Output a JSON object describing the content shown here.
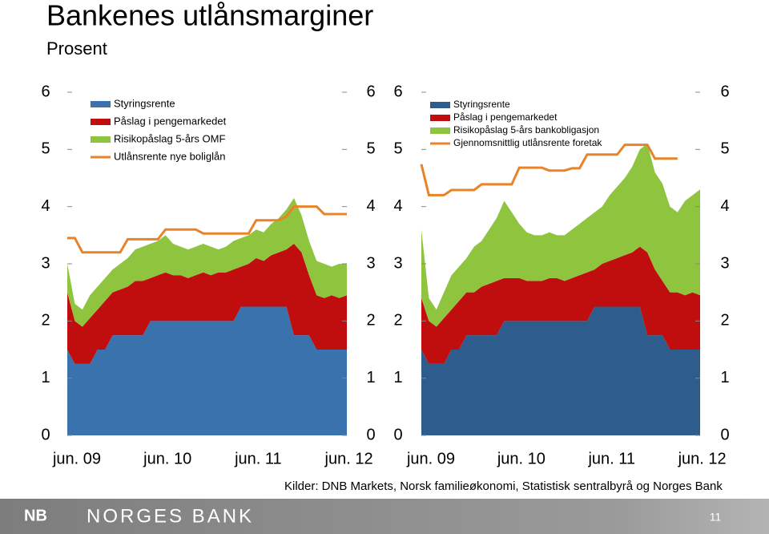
{
  "title": "Bankenes utlånsmarginer",
  "subtitle": "Prosent",
  "source": "Kilder: DNB Markets, Norsk familieøkonomi, Statistisk sentralbyrå og Norges Bank",
  "footer": {
    "logo_mark": "NB",
    "logo": "NORGES BANK",
    "page": "11"
  },
  "chart_data": [
    {
      "type": "area",
      "categories": [
        "jun. 09",
        null,
        null,
        null,
        null,
        null,
        null,
        null,
        null,
        null,
        null,
        null,
        "jun. 10",
        null,
        null,
        null,
        null,
        null,
        null,
        null,
        null,
        null,
        null,
        null,
        "jun. 11",
        null,
        null,
        null,
        null,
        null,
        null,
        null,
        null,
        null,
        null,
        null,
        "jun. 12",
        null
      ],
      "ylim": [
        0,
        6
      ],
      "yticks": [
        0,
        1,
        2,
        3,
        4,
        5,
        6
      ],
      "series": [
        {
          "name": "Styringsrente",
          "color": "#3a72ad",
          "values": [
            1.5,
            1.25,
            1.25,
            1.25,
            1.5,
            1.5,
            1.75,
            1.75,
            1.75,
            1.75,
            1.75,
            2.0,
            2.0,
            2.0,
            2.0,
            2.0,
            2.0,
            2.0,
            2.0,
            2.0,
            2.0,
            2.0,
            2.0,
            2.25,
            2.25,
            2.25,
            2.25,
            2.25,
            2.25,
            2.25,
            1.75,
            1.75,
            1.75,
            1.5,
            1.5,
            1.5,
            1.5,
            1.5
          ]
        },
        {
          "name": "Påslag i pengemarkedet",
          "color": "#c00d0d",
          "values": [
            1.0,
            0.75,
            0.65,
            0.8,
            0.7,
            0.85,
            0.75,
            0.8,
            0.85,
            0.95,
            0.95,
            0.75,
            0.8,
            0.85,
            0.8,
            0.8,
            0.75,
            0.8,
            0.85,
            0.8,
            0.85,
            0.85,
            0.9,
            0.7,
            0.75,
            0.85,
            0.8,
            0.9,
            0.95,
            1.0,
            1.6,
            1.45,
            1.05,
            0.95,
            0.9,
            0.95,
            0.9,
            0.95
          ]
        },
        {
          "name": "Risikopåslag 5-års OMF",
          "color": "#8fc43f",
          "values": [
            0.5,
            0.3,
            0.3,
            0.4,
            0.4,
            0.4,
            0.4,
            0.45,
            0.5,
            0.55,
            0.6,
            0.6,
            0.6,
            0.65,
            0.55,
            0.5,
            0.5,
            0.5,
            0.5,
            0.5,
            0.4,
            0.45,
            0.5,
            0.5,
            0.5,
            0.5,
            0.5,
            0.55,
            0.6,
            0.7,
            0.8,
            0.65,
            0.6,
            0.6,
            0.6,
            0.5,
            0.6,
            0.55
          ]
        },
        {
          "name": "Utlånsrente nye boliglån",
          "type": "line",
          "color": "#e8832a",
          "values": [
            3.45,
            3.45,
            3.2,
            3.2,
            3.2,
            3.2,
            3.2,
            3.2,
            3.43,
            3.43,
            3.43,
            3.43,
            3.43,
            3.6,
            3.6,
            3.6,
            3.6,
            3.6,
            3.53,
            3.53,
            3.53,
            3.53,
            3.53,
            3.53,
            3.53,
            3.76,
            3.76,
            3.76,
            3.76,
            3.83,
            4.0,
            4.0,
            4.0,
            4.0,
            3.87,
            3.87,
            3.87,
            3.87
          ]
        }
      ]
    },
    {
      "type": "area",
      "categories": [
        "jun. 09",
        null,
        null,
        null,
        null,
        null,
        null,
        null,
        null,
        null,
        null,
        null,
        "jun. 10",
        null,
        null,
        null,
        null,
        null,
        null,
        null,
        null,
        null,
        null,
        null,
        "jun. 11",
        null,
        null,
        null,
        null,
        null,
        null,
        null,
        null,
        null,
        null,
        null,
        "jun. 12",
        null
      ],
      "ylim": [
        0,
        6
      ],
      "yticks": [
        0,
        1,
        2,
        3,
        4,
        5,
        6
      ],
      "series": [
        {
          "name": "Styringsrente",
          "color": "#2e5c8c",
          "values": [
            1.5,
            1.25,
            1.25,
            1.25,
            1.5,
            1.5,
            1.75,
            1.75,
            1.75,
            1.75,
            1.75,
            2.0,
            2.0,
            2.0,
            2.0,
            2.0,
            2.0,
            2.0,
            2.0,
            2.0,
            2.0,
            2.0,
            2.0,
            2.25,
            2.25,
            2.25,
            2.25,
            2.25,
            2.25,
            2.25,
            1.75,
            1.75,
            1.75,
            1.5,
            1.5,
            1.5,
            1.5,
            1.5
          ]
        },
        {
          "name": "Påslag i pengemarkedet",
          "color": "#c00d0d",
          "values": [
            0.9,
            0.75,
            0.65,
            0.8,
            0.7,
            0.85,
            0.75,
            0.75,
            0.85,
            0.9,
            0.95,
            0.75,
            0.75,
            0.75,
            0.7,
            0.7,
            0.7,
            0.75,
            0.75,
            0.7,
            0.75,
            0.8,
            0.85,
            0.65,
            0.75,
            0.8,
            0.85,
            0.9,
            0.95,
            1.05,
            1.45,
            1.15,
            0.95,
            1.0,
            1.0,
            0.95,
            1.0,
            0.95
          ]
        },
        {
          "name": "Risikopåslag 5-års bankobligasjon",
          "color": "#8fc43f",
          "values": [
            1.2,
            0.4,
            0.3,
            0.45,
            0.6,
            0.6,
            0.6,
            0.8,
            0.8,
            0.95,
            1.1,
            1.35,
            1.15,
            0.95,
            0.85,
            0.8,
            0.8,
            0.8,
            0.75,
            0.8,
            0.85,
            0.9,
            0.95,
            1.0,
            1.0,
            1.15,
            1.25,
            1.35,
            1.5,
            1.7,
            1.9,
            1.7,
            1.7,
            1.5,
            1.4,
            1.65,
            1.7,
            1.85
          ]
        },
        {
          "name": "Gjennomsnittlig utlånsrente foretak",
          "type": "line",
          "color": "#e8832a",
          "values": [
            4.74,
            4.2,
            4.2,
            4.2,
            4.29,
            4.29,
            4.29,
            4.29,
            4.39,
            4.39,
            4.39,
            4.39,
            4.39,
            4.68,
            4.68,
            4.68,
            4.68,
            4.63,
            4.63,
            4.63,
            4.67,
            4.67,
            4.91,
            4.91,
            4.91,
            4.91,
            4.91,
            5.08,
            5.08,
            5.08,
            5.08,
            4.84,
            4.84,
            4.84,
            4.84,
            null,
            null,
            null
          ]
        }
      ]
    }
  ]
}
